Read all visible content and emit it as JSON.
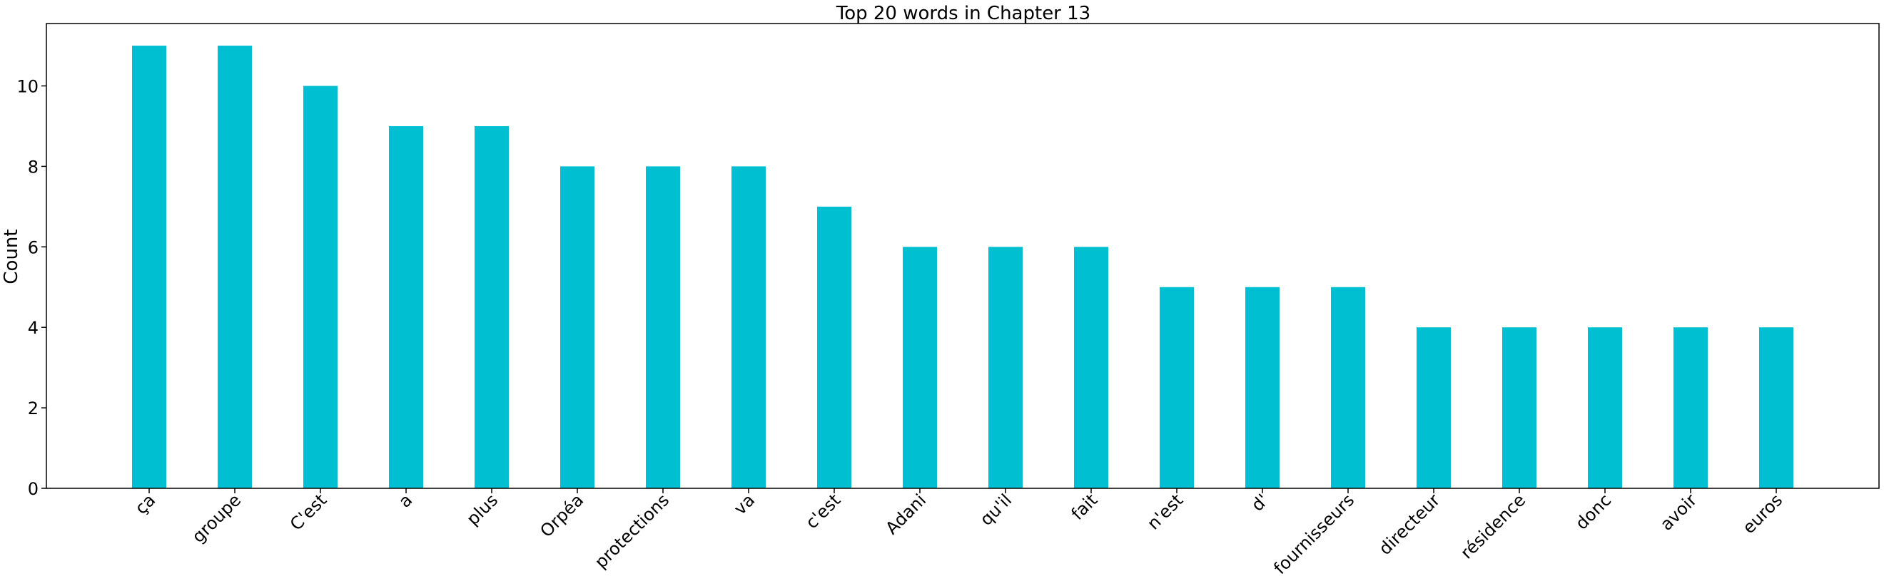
{
  "chart_data": {
    "type": "bar",
    "title": "Top 20 words in Chapter 13",
    "xlabel": "",
    "ylabel": "Count",
    "categories": [
      "ça",
      "groupe",
      "C'est",
      "a",
      "plus",
      "Orpéa",
      "protections",
      "va",
      "c'est",
      "Adani",
      "qu'il",
      "fait",
      "n'est",
      "d'",
      "fournisseurs",
      "directeur",
      "résidence",
      "donc",
      "avoir",
      "euros"
    ],
    "values": [
      11,
      11,
      10,
      9,
      9,
      8,
      8,
      8,
      7,
      6,
      6,
      6,
      5,
      5,
      5,
      4,
      4,
      4,
      4,
      4
    ],
    "ylim": [
      0,
      11.55
    ],
    "yticks": [
      0,
      2,
      4,
      6,
      8,
      10
    ],
    "grid": false,
    "colors": {
      "bar": "#00bfd0",
      "axis": "#000000"
    }
  }
}
